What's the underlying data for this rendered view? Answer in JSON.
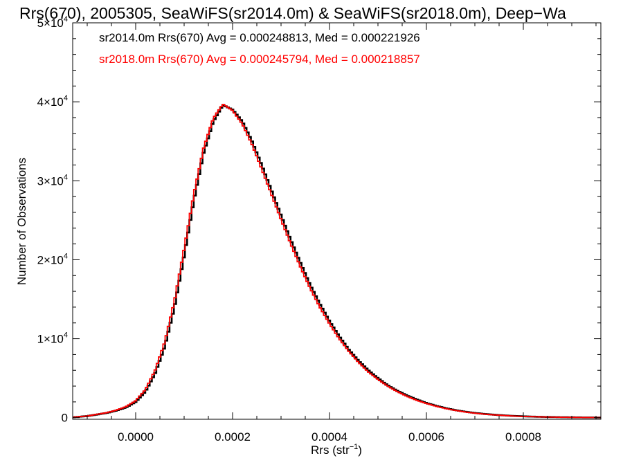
{
  "chart_data": {
    "type": "line",
    "title": "Rrs(670), 2005305, SeaWiFS(sr2014.0m) & SeaWiFS(sr2018.0m), Deep−Wa",
    "xlabel": "Rrs (str",
    "xlabel_superscript": "−1",
    "xlabel_suffix": ")",
    "ylabel": "Number of Observations",
    "xlim": [
      -0.00013,
      0.00096
    ],
    "ylim": [
      -200,
      50000
    ],
    "xticks": [
      {
        "value": 0.0,
        "label": "0.0000"
      },
      {
        "value": 0.0002,
        "label": "0.0002"
      },
      {
        "value": 0.0004,
        "label": "0.0004"
      },
      {
        "value": 0.0006,
        "label": "0.0006"
      },
      {
        "value": 0.0008,
        "label": "0.0008"
      }
    ],
    "yticks": [
      {
        "value": 0,
        "mantissa": "0",
        "exponent": ""
      },
      {
        "value": 10000,
        "mantissa": "1×10",
        "exponent": "4"
      },
      {
        "value": 20000,
        "mantissa": "2×10",
        "exponent": "4"
      },
      {
        "value": 30000,
        "mantissa": "3×10",
        "exponent": "4"
      },
      {
        "value": 40000,
        "mantissa": "4×10",
        "exponent": "4"
      },
      {
        "value": 50000,
        "mantissa": "5×10",
        "exponent": "4"
      }
    ],
    "annotations": [
      {
        "text": "sr2014.0m Rrs(670) Avg = 0.000248813, Med = 0.000221926",
        "color": "#000000"
      },
      {
        "text": "sr2018.0m Rrs(670) Avg = 0.000245794, Med = 0.000218857",
        "color": "#ff0000"
      }
    ],
    "grid": false,
    "step": true,
    "series": [
      {
        "name": "sr2014.0m",
        "color": "#000000",
        "points": [
          [
            -0.00013,
            50
          ],
          [
            -0.0001,
            200
          ],
          [
            -8e-05,
            400
          ],
          [
            -6e-05,
            600
          ],
          [
            -4e-05,
            900
          ],
          [
            -2e-05,
            1300
          ],
          [
            0.0,
            2000
          ],
          [
            2e-05,
            3300
          ],
          [
            4e-05,
            5600
          ],
          [
            6e-05,
            9000
          ],
          [
            8e-05,
            14000
          ],
          [
            0.0001,
            20500
          ],
          [
            0.00012,
            27500
          ],
          [
            0.00014,
            33500
          ],
          [
            0.00016,
            37500
          ],
          [
            0.00018,
            39600
          ],
          [
            0.0002,
            39000
          ],
          [
            0.00022,
            37500
          ],
          [
            0.00024,
            35000
          ],
          [
            0.00026,
            32000
          ],
          [
            0.00028,
            28800
          ],
          [
            0.0003,
            25600
          ],
          [
            0.00032,
            22500
          ],
          [
            0.00034,
            19600
          ],
          [
            0.00036,
            16800
          ],
          [
            0.00038,
            14400
          ],
          [
            0.0004,
            12200
          ],
          [
            0.00042,
            10300
          ],
          [
            0.00044,
            8600
          ],
          [
            0.00046,
            7200
          ],
          [
            0.00048,
            6000
          ],
          [
            0.0005,
            5000
          ],
          [
            0.00052,
            4100
          ],
          [
            0.00054,
            3400
          ],
          [
            0.00056,
            2800
          ],
          [
            0.00058,
            2300
          ],
          [
            0.0006,
            1850
          ],
          [
            0.00062,
            1500
          ],
          [
            0.00064,
            1200
          ],
          [
            0.00066,
            950
          ],
          [
            0.00068,
            750
          ],
          [
            0.0007,
            600
          ],
          [
            0.00072,
            470
          ],
          [
            0.00074,
            370
          ],
          [
            0.00076,
            290
          ],
          [
            0.00078,
            220
          ],
          [
            0.0008,
            170
          ],
          [
            0.00084,
            100
          ],
          [
            0.00088,
            60
          ],
          [
            0.00092,
            30
          ],
          [
            0.00096,
            15
          ]
        ]
      },
      {
        "name": "sr2018.0m",
        "color": "#ff0000",
        "points": [
          [
            -0.00013,
            50
          ],
          [
            -0.0001,
            210
          ],
          [
            -8e-05,
            420
          ],
          [
            -6e-05,
            630
          ],
          [
            -4e-05,
            950
          ],
          [
            -2e-05,
            1400
          ],
          [
            0.0,
            2150
          ],
          [
            2e-05,
            3550
          ],
          [
            4e-05,
            6000
          ],
          [
            6e-05,
            9600
          ],
          [
            8e-05,
            14800
          ],
          [
            0.0001,
            21400
          ],
          [
            0.00012,
            28300
          ],
          [
            0.00014,
            34100
          ],
          [
            0.00016,
            37900
          ],
          [
            0.00018,
            39700
          ],
          [
            0.0002,
            38900
          ],
          [
            0.00022,
            37200
          ],
          [
            0.00024,
            34600
          ],
          [
            0.00026,
            31500
          ],
          [
            0.00028,
            28300
          ],
          [
            0.0003,
            25100
          ],
          [
            0.00032,
            22000
          ],
          [
            0.00034,
            19100
          ],
          [
            0.00036,
            16400
          ],
          [
            0.00038,
            14000
          ],
          [
            0.0004,
            11900
          ],
          [
            0.00042,
            10000
          ],
          [
            0.00044,
            8400
          ],
          [
            0.00046,
            7000
          ],
          [
            0.00048,
            5800
          ],
          [
            0.0005,
            4850
          ],
          [
            0.00052,
            4000
          ],
          [
            0.00054,
            3300
          ],
          [
            0.00056,
            2700
          ],
          [
            0.00058,
            2200
          ],
          [
            0.0006,
            1800
          ],
          [
            0.00062,
            1450
          ],
          [
            0.00064,
            1150
          ],
          [
            0.00066,
            920
          ],
          [
            0.00068,
            720
          ],
          [
            0.0007,
            570
          ],
          [
            0.00072,
            450
          ],
          [
            0.00074,
            350
          ],
          [
            0.00076,
            280
          ],
          [
            0.00078,
            210
          ],
          [
            0.0008,
            160
          ],
          [
            0.00084,
            95
          ],
          [
            0.00088,
            55
          ],
          [
            0.00092,
            28
          ],
          [
            0.00096,
            14
          ]
        ]
      }
    ]
  }
}
